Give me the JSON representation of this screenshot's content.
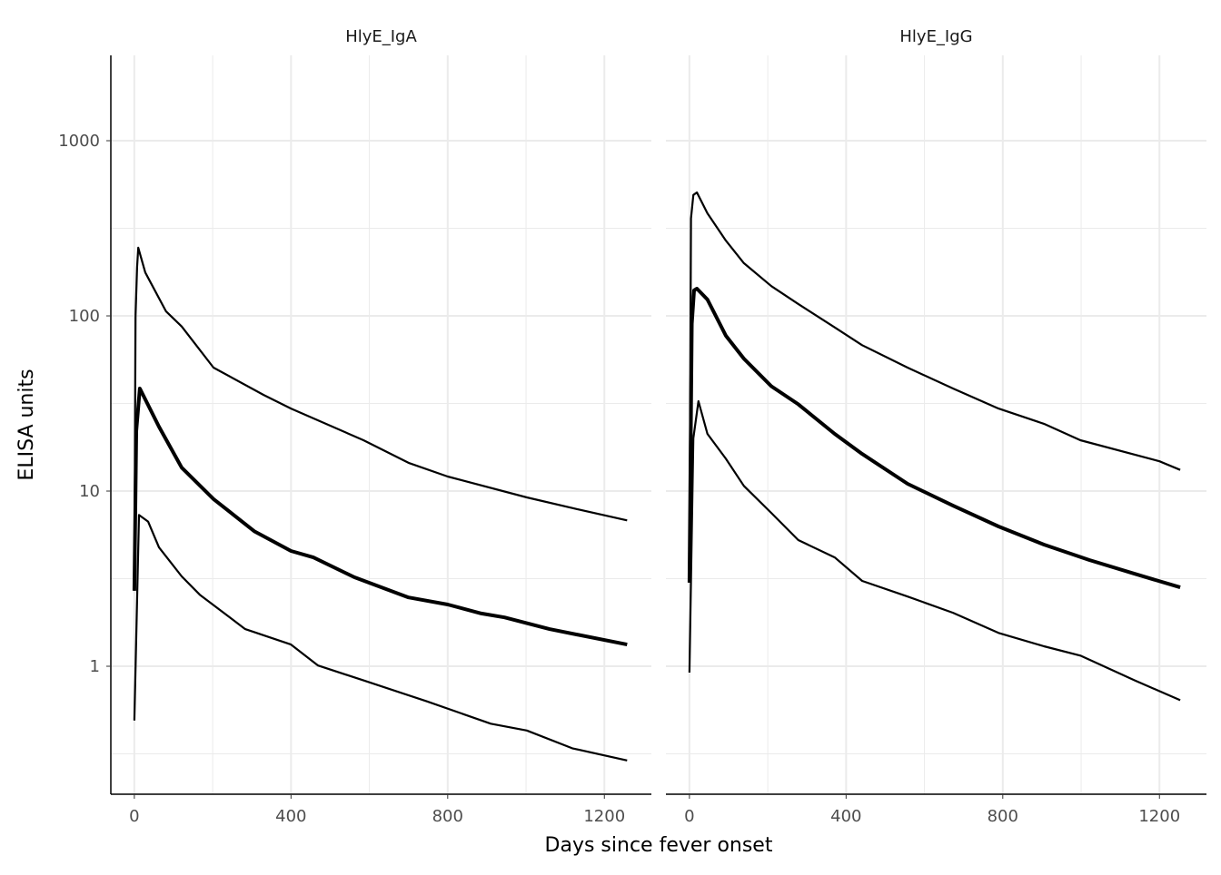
{
  "chart_data": {
    "type": "line",
    "xlabel": "Days since fever onset",
    "ylabel": "ELISA units",
    "y_scale": "log10",
    "ylim": [
      0.186,
      3070
    ],
    "xlim": [
      -60,
      1320
    ],
    "x_ticks": [
      0,
      400,
      800,
      1200
    ],
    "y_ticks": [
      1,
      10,
      100,
      1000
    ],
    "y_tick_labels": [
      "1",
      "10",
      "100",
      "1000"
    ],
    "x_tick_labels": [
      "0",
      "400",
      "800",
      "1200"
    ],
    "grid": true,
    "line_color": "#000000",
    "grid_color": "#ebebeb",
    "panels": [
      {
        "title": "HlyE_IgA",
        "series": [
          {
            "role": "upper",
            "points": [
              [
                0,
                2.7
              ],
              [
                3,
                100
              ],
              [
                7,
                190
              ],
              [
                10,
                245
              ],
              [
                28,
                177
              ],
              [
                81,
                106
              ],
              [
                121,
                87
              ],
              [
                202,
                50.7
              ],
              [
                330,
                35.4
              ],
              [
                400,
                29.6
              ],
              [
                585,
                19.5
              ],
              [
                700,
                14.5
              ],
              [
                800,
                12.1
              ],
              [
                1002,
                9.2
              ],
              [
                1118,
                8.0
              ],
              [
                1258,
                6.8
              ]
            ]
          },
          {
            "role": "median",
            "points": [
              [
                0,
                2.7
              ],
              [
                5,
                22
              ],
              [
                14,
                38.5
              ],
              [
                63,
                23.3
              ],
              [
                121,
                13.6
              ],
              [
                202,
                9.0
              ],
              [
                306,
                5.9
              ],
              [
                400,
                4.55
              ],
              [
                457,
                4.18
              ],
              [
                562,
                3.22
              ],
              [
                700,
                2.47
              ],
              [
                800,
                2.25
              ],
              [
                886,
                2.0
              ],
              [
                945,
                1.9
              ],
              [
                1060,
                1.63
              ],
              [
                1258,
                1.33
              ]
            ]
          },
          {
            "role": "lower",
            "points": [
              [
                0,
                0.49
              ],
              [
                12,
                7.3
              ],
              [
                35,
                6.7
              ],
              [
                63,
                4.77
              ],
              [
                121,
                3.26
              ],
              [
                167,
                2.56
              ],
              [
                283,
                1.63
              ],
              [
                400,
                1.33
              ],
              [
                469,
                1.01
              ],
              [
                585,
                0.83
              ],
              [
                747,
                0.63
              ],
              [
                910,
                0.47
              ],
              [
                1002,
                0.43
              ],
              [
                1118,
                0.34
              ],
              [
                1258,
                0.29
              ]
            ]
          }
        ]
      },
      {
        "title": "HlyE_IgG",
        "series": [
          {
            "role": "upper",
            "points": [
              [
                0,
                3.0
              ],
              [
                4,
                360
              ],
              [
                10,
                490
              ],
              [
                19,
                507
              ],
              [
                46,
                385
              ],
              [
                93,
                269
              ],
              [
                139,
                200
              ],
              [
                209,
                148
              ],
              [
                278,
                117
              ],
              [
                371,
                86
              ],
              [
                441,
                68
              ],
              [
                557,
                50.7
              ],
              [
                673,
                38.5
              ],
              [
                789,
                29.6
              ],
              [
                905,
                24.2
              ],
              [
                998,
                19.5
              ],
              [
                1200,
                14.8
              ],
              [
                1253,
                13.2
              ]
            ]
          },
          {
            "role": "median",
            "points": [
              [
                0,
                3.0
              ],
              [
                6,
                90
              ],
              [
                12,
                140
              ],
              [
                19,
                143
              ],
              [
                46,
                124
              ],
              [
                93,
                77
              ],
              [
                139,
                57
              ],
              [
                209,
                39.7
              ],
              [
                278,
                31.3
              ],
              [
                371,
                21.2
              ],
              [
                441,
                16.3
              ],
              [
                557,
                11.0
              ],
              [
                673,
                8.25
              ],
              [
                789,
                6.28
              ],
              [
                905,
                4.95
              ],
              [
                1021,
                4.04
              ],
              [
                1137,
                3.37
              ],
              [
                1253,
                2.82
              ]
            ]
          },
          {
            "role": "lower",
            "points": [
              [
                0,
                0.92
              ],
              [
                10,
                20
              ],
              [
                23,
                32.6
              ],
              [
                46,
                21.2
              ],
              [
                93,
                15.3
              ],
              [
                139,
                10.7
              ],
              [
                209,
                7.5
              ],
              [
                278,
                5.25
              ],
              [
                371,
                4.18
              ],
              [
                441,
                3.07
              ],
              [
                557,
                2.5
              ],
              [
                673,
                2.02
              ],
              [
                789,
                1.55
              ],
              [
                905,
                1.3
              ],
              [
                998,
                1.15
              ],
              [
                1137,
                0.83
              ],
              [
                1253,
                0.64
              ]
            ]
          }
        ]
      }
    ]
  }
}
